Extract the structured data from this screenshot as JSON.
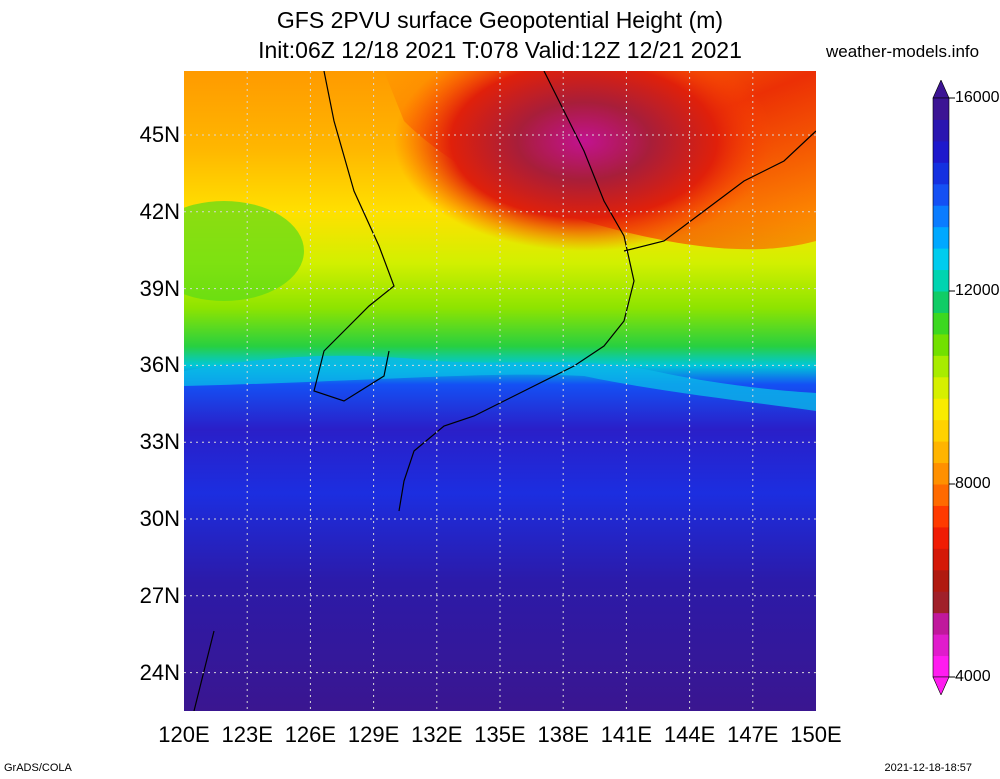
{
  "title": {
    "line1": "GFS 2PVU surface Geopotential Height (m)",
    "line2": "Init:06Z 12/18 2021 T:078 Valid:12Z 12/21 2021"
  },
  "site": "weather-models.info",
  "footer": {
    "left": "GrADS/COLA",
    "right": "2021-12-18-18:57"
  },
  "map": {
    "lon_range": [
      120,
      150
    ],
    "lat_range": [
      22.5,
      47.5
    ],
    "lat_labels": [
      "24N",
      "27N",
      "30N",
      "33N",
      "36N",
      "39N",
      "42N",
      "45N"
    ],
    "lat_values": [
      24,
      27,
      30,
      33,
      36,
      39,
      42,
      45
    ],
    "lon_labels": [
      "120E",
      "123E",
      "126E",
      "129E",
      "132E",
      "135E",
      "138E",
      "141E",
      "144E",
      "147E",
      "150E"
    ],
    "lon_values": [
      120,
      123,
      126,
      129,
      132,
      135,
      138,
      141,
      144,
      147,
      150
    ],
    "grid": true
  },
  "colorbar": {
    "labels": [
      "16000",
      "12000",
      "8000",
      "4000"
    ],
    "label_values": [
      16000,
      12000,
      8000,
      4000
    ],
    "range": [
      4000,
      16000
    ],
    "colors": [
      "#ff1cf0",
      "#e01ccc",
      "#c0189c",
      "#a0202a",
      "#b01a10",
      "#d41808",
      "#f01c04",
      "#ff3a00",
      "#ff6a00",
      "#ff9000",
      "#ffb400",
      "#ffd200",
      "#f8ec00",
      "#d6f000",
      "#a8ec00",
      "#72e000",
      "#3cd820",
      "#10cc66",
      "#00d4b0",
      "#00ccee",
      "#00a8ff",
      "#0a7cff",
      "#1450f4",
      "#1430e0",
      "#1e18cc",
      "#2a16b0",
      "#3c1494"
    ]
  }
}
